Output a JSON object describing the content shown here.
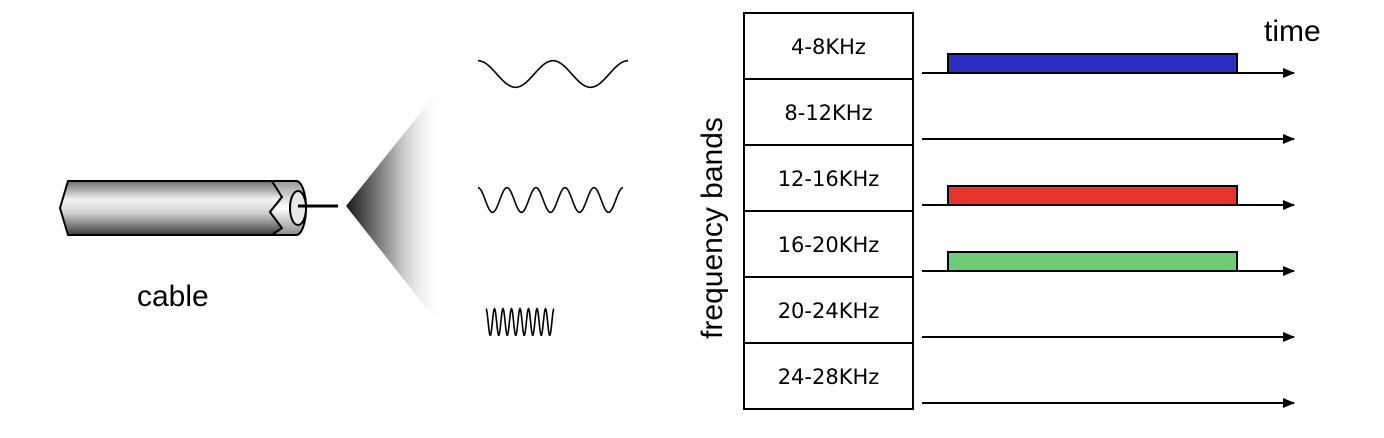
{
  "diagram": {
    "cable_label": "cable",
    "axis_label": "frequency bands",
    "time_label": "time"
  },
  "bands": [
    {
      "label": "4-8KHz",
      "active": true,
      "color": "#2b2fbf"
    },
    {
      "label": "8-12KHz",
      "active": false,
      "color": null
    },
    {
      "label": "12-16KHz",
      "active": true,
      "color": "#e8332a"
    },
    {
      "label": "16-20KHz",
      "active": true,
      "color": "#6dcc78"
    },
    {
      "label": "20-24KHz",
      "active": false,
      "color": null
    },
    {
      "label": "24-28KHz",
      "active": false,
      "color": null
    }
  ],
  "waves": [
    {
      "name": "low-frequency",
      "cycles": 2
    },
    {
      "name": "medium-frequency",
      "cycles": 5
    },
    {
      "name": "high-frequency",
      "cycles": 8
    }
  ]
}
